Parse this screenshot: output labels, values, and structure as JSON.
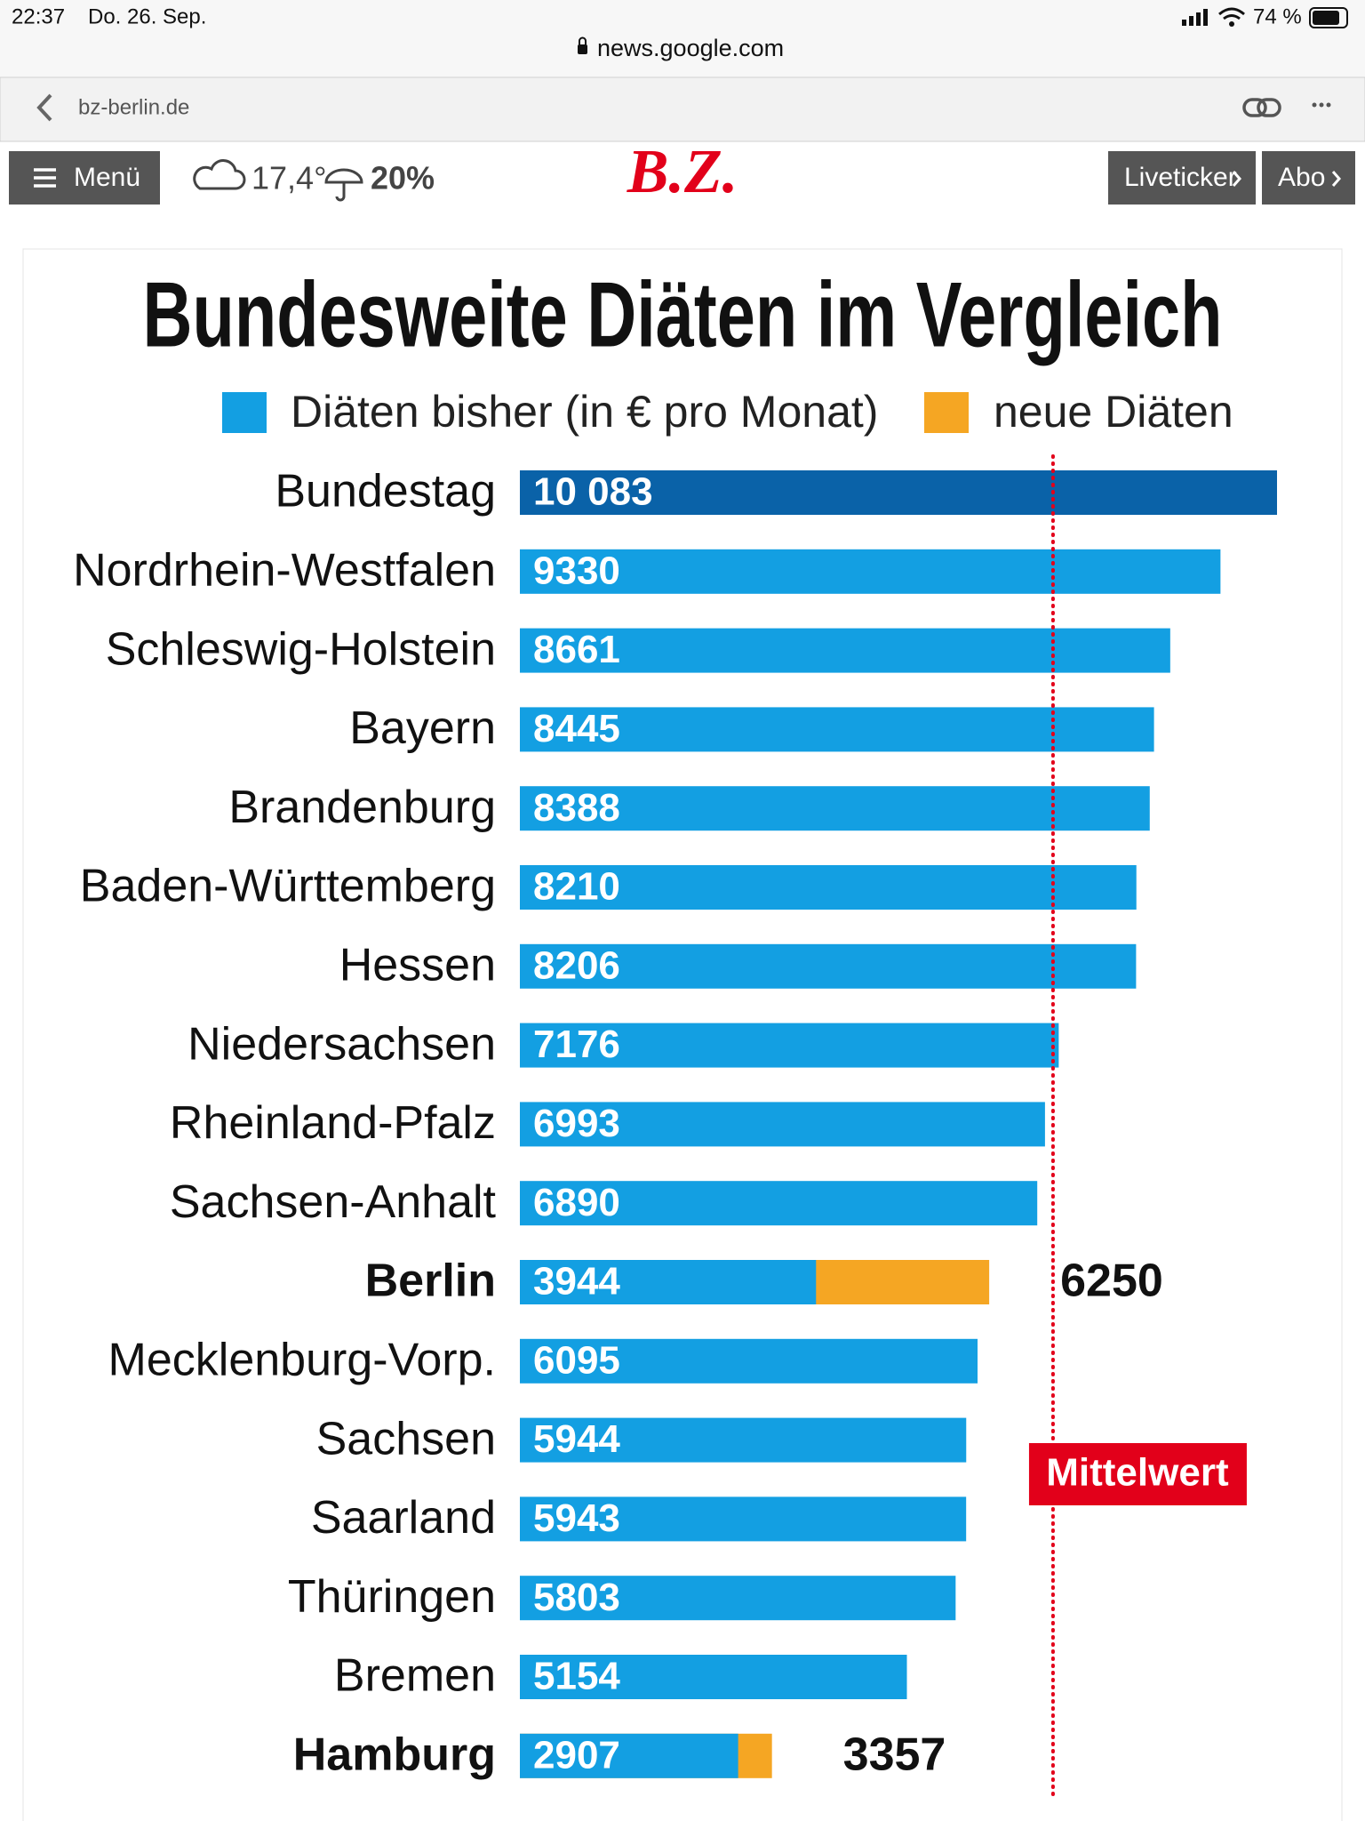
{
  "status_bar": {
    "time": "22:37",
    "date": "Do. 26. Sep.",
    "battery": "74 %"
  },
  "browser": {
    "url": "news.google.com",
    "source": "bz-berlin.de"
  },
  "site_header": {
    "menu": "Menü",
    "temperature": "17,4°",
    "rain": "20%",
    "logo": "B.Z.",
    "buttons": [
      "Liveticker",
      "Abo"
    ]
  },
  "chart_data": {
    "type": "bar",
    "orientation": "horizontal",
    "title": "Bundesweite Diäten im Vergleich",
    "categories": [
      "Bundestag",
      "Nordrhein-Westfalen",
      "Schleswig-Holstein",
      "Bayern",
      "Brandenburg",
      "Baden-Württemberg",
      "Hessen",
      "Niedersachsen",
      "Rheinland-Pfalz",
      "Sachsen-Anhalt",
      "Berlin",
      "Mecklenburg-Vorp.",
      "Sachsen",
      "Saarland",
      "Thüringen",
      "Bremen",
      "Hamburg"
    ],
    "series": [
      {
        "name": "Diäten bisher (in € pro Monat)",
        "color": "#139fe2",
        "colors": [
          "#0a62a8",
          "#139fe2",
          "#139fe2",
          "#139fe2",
          "#139fe2",
          "#139fe2",
          "#139fe2",
          "#139fe2",
          "#139fe2",
          "#139fe2",
          "#139fe2",
          "#139fe2",
          "#139fe2",
          "#139fe2",
          "#139fe2",
          "#139fe2",
          "#139fe2"
        ],
        "values": [
          10083,
          9330,
          8661,
          8445,
          8388,
          8210,
          8206,
          7176,
          6993,
          6890,
          3944,
          6095,
          5944,
          5943,
          5803,
          5154,
          2907
        ],
        "value_labels": [
          "10 083",
          "9330",
          "8661",
          "8445",
          "8388",
          "8210",
          "8206",
          "7176",
          "6993",
          "6890",
          "3944",
          "6095",
          "5944",
          "5943",
          "5803",
          "5154",
          "2907"
        ]
      },
      {
        "name": "neue Diäten",
        "color": "#f5a623",
        "values": [
          null,
          null,
          null,
          null,
          null,
          null,
          null,
          null,
          null,
          null,
          6250,
          null,
          null,
          null,
          null,
          null,
          3357
        ]
      }
    ],
    "xlim": [
      0,
      10083
    ],
    "mean_line": {
      "label": "Mittelwert",
      "value": 7100,
      "color": "#e2001a"
    }
  }
}
